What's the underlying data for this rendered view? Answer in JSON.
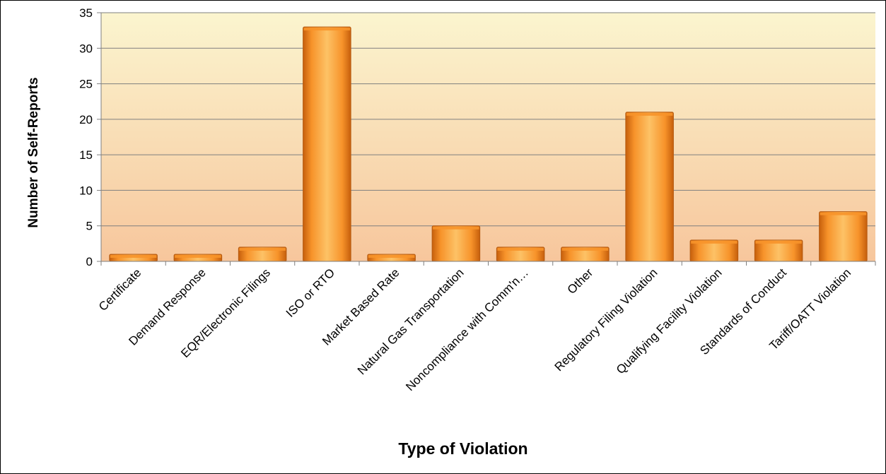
{
  "chart_data": {
    "type": "bar",
    "title": "",
    "xlabel": "Type of Violation",
    "ylabel": "Number of Self-Reports",
    "categories": [
      "Certificate",
      "Demand Response",
      "EQR/Electronic Filings",
      "ISO or RTO",
      "Market Based Rate",
      "Natural Gas Transportation",
      "Noncompliance with Comm'n…",
      "Other",
      "Regulatory Filing Violation",
      "Qualifying Facility Violation",
      "Standards of Conduct",
      "Tariff/OATT Violation"
    ],
    "values": [
      1,
      1,
      2,
      33,
      1,
      5,
      2,
      2,
      21,
      3,
      3,
      7
    ],
    "ylim": [
      0,
      35
    ],
    "yticks": [
      0,
      5,
      10,
      15,
      20,
      25,
      30,
      35
    ],
    "grid": true,
    "legend": "none",
    "colors": {
      "bar_light": "#fdc266",
      "bar_mid": "#f7932a",
      "bar_dark": "#c65f0c",
      "bar_outline": "#b55a10",
      "plot_bg_top": "#fbf5cf",
      "plot_bg_bottom": "#f7c69c",
      "gridline": "#7f7f7f"
    }
  }
}
